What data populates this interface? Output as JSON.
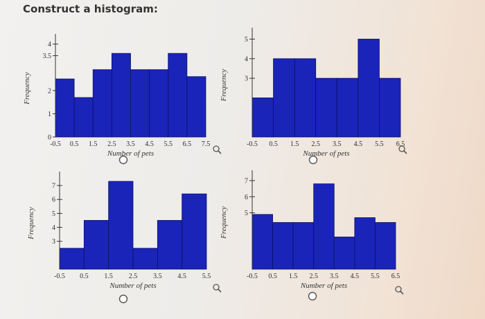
{
  "question": {
    "title": "Construct a histogram:"
  },
  "chart_data": [
    {
      "type": "bar",
      "xlabel": "Number of pets",
      "ylabel": "Frequency",
      "x_ticks": [
        "-0.5",
        "0.5",
        "1.5",
        "2.5",
        "3.5",
        "4.5",
        "5.5",
        "6.5",
        "7.5"
      ],
      "y_ticks": [
        "0",
        "1",
        "2",
        "3.5",
        "4"
      ],
      "bin_edges": [
        -0.5,
        0.5,
        1.5,
        2.5,
        3.5,
        4.5,
        5.5,
        6.5,
        7.5
      ],
      "values": [
        2.5,
        1.7,
        2.9,
        3.6,
        2.9,
        2.9,
        3.6,
        2.6
      ],
      "ylim": [
        0,
        4.2
      ]
    },
    {
      "type": "bar",
      "xlabel": "Number of pets",
      "ylabel": "Frequency",
      "x_ticks": [
        "-0.5",
        "0.5",
        "1.5",
        "2.5",
        "3.5",
        "4.5",
        "5.5",
        "6.5"
      ],
      "y_ticks": [
        "3",
        "4",
        "5"
      ],
      "bin_edges": [
        -0.5,
        0.5,
        1.5,
        2.5,
        3.5,
        4.5,
        5.5,
        6.5
      ],
      "values": [
        2,
        4,
        4,
        3,
        3,
        5,
        3
      ],
      "ylim": [
        0,
        5.3
      ]
    },
    {
      "type": "bar",
      "xlabel": "Number of pets",
      "ylabel": "Frequency",
      "x_ticks": [
        "-0.5",
        "0.5",
        "1.5",
        "2.5",
        "3.5",
        "4.5",
        "5.5"
      ],
      "y_ticks": [
        "3",
        "4",
        "5",
        "6",
        "7"
      ],
      "bin_edges": [
        -0.5,
        0.5,
        1.5,
        2.5,
        3.5,
        4.5,
        5.5
      ],
      "values": [
        2.5,
        4.5,
        7.3,
        2.5,
        4.5,
        6.4
      ],
      "ylim": [
        1,
        7.6
      ]
    },
    {
      "type": "bar",
      "xlabel": "Number of pets",
      "ylabel": "Frequency",
      "x_ticks": [
        "-0.5",
        "0.5",
        "1.5",
        "2.5",
        "3.5",
        "4.5",
        "5.5",
        "6.5"
      ],
      "y_ticks": [
        "5",
        "6",
        "7"
      ],
      "bin_edges": [
        -0.5,
        0.5,
        1.5,
        2.5,
        3.5,
        4.5,
        5.5,
        6.5
      ],
      "values": [
        4.9,
        4.4,
        4.4,
        6.8,
        3.5,
        4.7,
        4.4
      ],
      "ylim": [
        1.5,
        7.3
      ]
    }
  ]
}
